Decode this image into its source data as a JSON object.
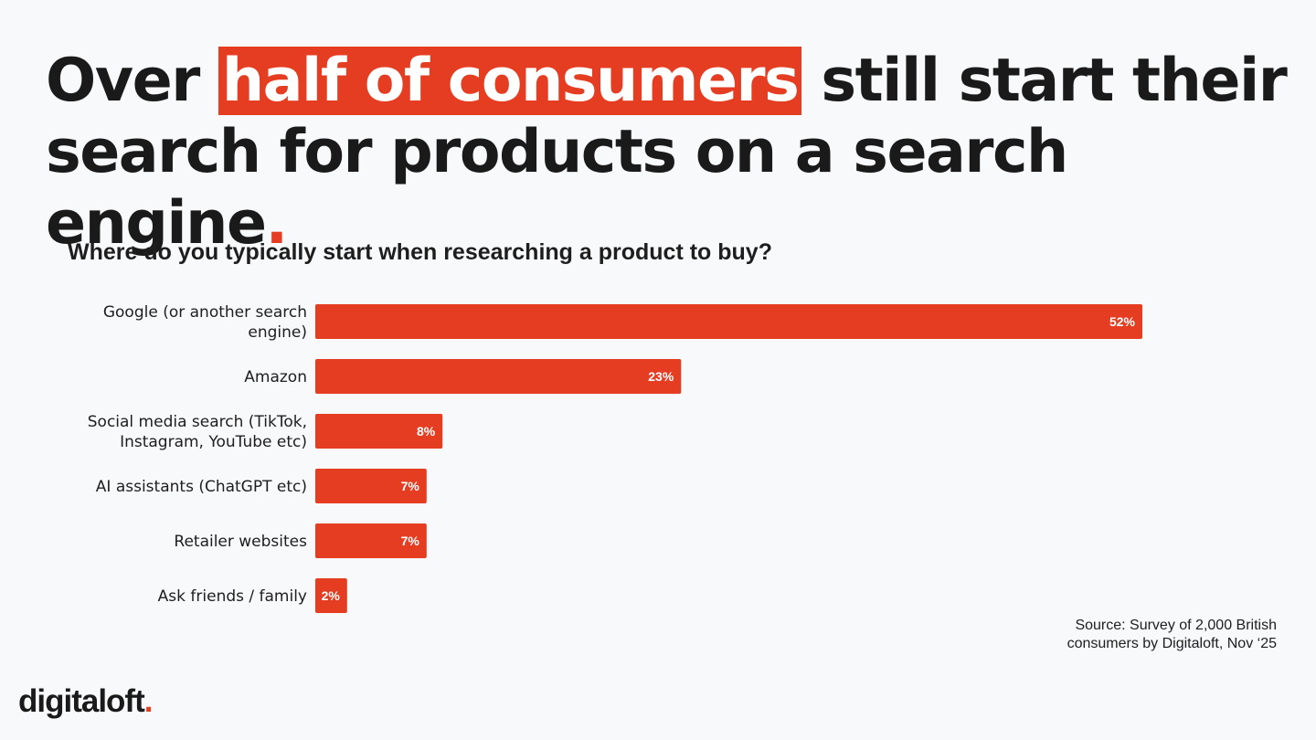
{
  "headline": {
    "part1": "Over ",
    "highlight": "half of consumers",
    "part2": " still start their search for products on a search engine",
    "dot": "."
  },
  "colors": {
    "accent": "#e43d22",
    "bar_label": "#ffffff",
    "text": "#1e1e1e"
  },
  "chart_data": {
    "type": "bar",
    "orientation": "horizontal",
    "title": "Where do you typically start when researching a product to buy?",
    "categories": [
      [
        "Google (or another search",
        "engine)"
      ],
      [
        "Amazon"
      ],
      [
        "Social media search (TikTok,",
        "Instagram, YouTube etc)"
      ],
      [
        "AI assistants (ChatGPT etc)"
      ],
      [
        "Retailer websites"
      ],
      [
        "Ask friends / family"
      ]
    ],
    "values": [
      52,
      23,
      8,
      7,
      7,
      2
    ],
    "value_labels": [
      "52%",
      "23%",
      "8%",
      "7%",
      "7%",
      "2%"
    ],
    "unit": "%",
    "xlim": [
      0,
      52
    ],
    "grid": false
  },
  "source": {
    "line1": "Source: Survey of 2,000 British",
    "line2": "consumers by Digitaloft, Nov ‘25"
  },
  "logo": {
    "text": "digitaloft",
    "dot": "."
  }
}
